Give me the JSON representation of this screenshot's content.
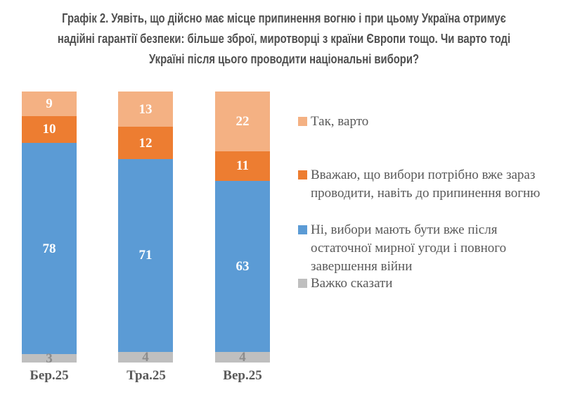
{
  "title": {
    "lines": [
      "Графік 2. Уявіть, що дійсно має місце припинення вогню і при цьому Україна отримує",
      "надійні гарантії безпеки: більше зброї, миротворці з країни Європи тощо. Чи варто тоді",
      "Україні після цього проводити національні вибори?"
    ]
  },
  "chart_data": {
    "type": "bar",
    "stacked": true,
    "orientation": "vertical",
    "categories": [
      "Бер.25",
      "Тра.25",
      "Вер.25"
    ],
    "series": [
      {
        "name": "Так, варто",
        "color": "#F4B183",
        "label_color": "#FFFFFF",
        "values": [
          9,
          13,
          22
        ]
      },
      {
        "name": "Вважаю, що вибори потрібно вже зараз проводити, навіть до припинення вогню",
        "color": "#ED7D31",
        "label_color": "#FFFFFF",
        "values": [
          10,
          12,
          11
        ]
      },
      {
        "name": "Ні, вибори мають бути вже після остаточної мирної угоди і повного завершення війни",
        "color": "#5B9BD5",
        "label_color": "#FFFFFF",
        "values": [
          78,
          71,
          63
        ]
      },
      {
        "name": "Важко сказати",
        "color": "#BFBFBF",
        "label_color": "#8C8C8C",
        "values": [
          3,
          4,
          4
        ]
      }
    ],
    "ylim": [
      0,
      100
    ],
    "grid": false,
    "axis_lines": false,
    "data_labels": true,
    "legend_position": "right",
    "text_colors": {
      "title": "#4F4F4F",
      "axis": "#595959",
      "legend": "#595959"
    }
  }
}
